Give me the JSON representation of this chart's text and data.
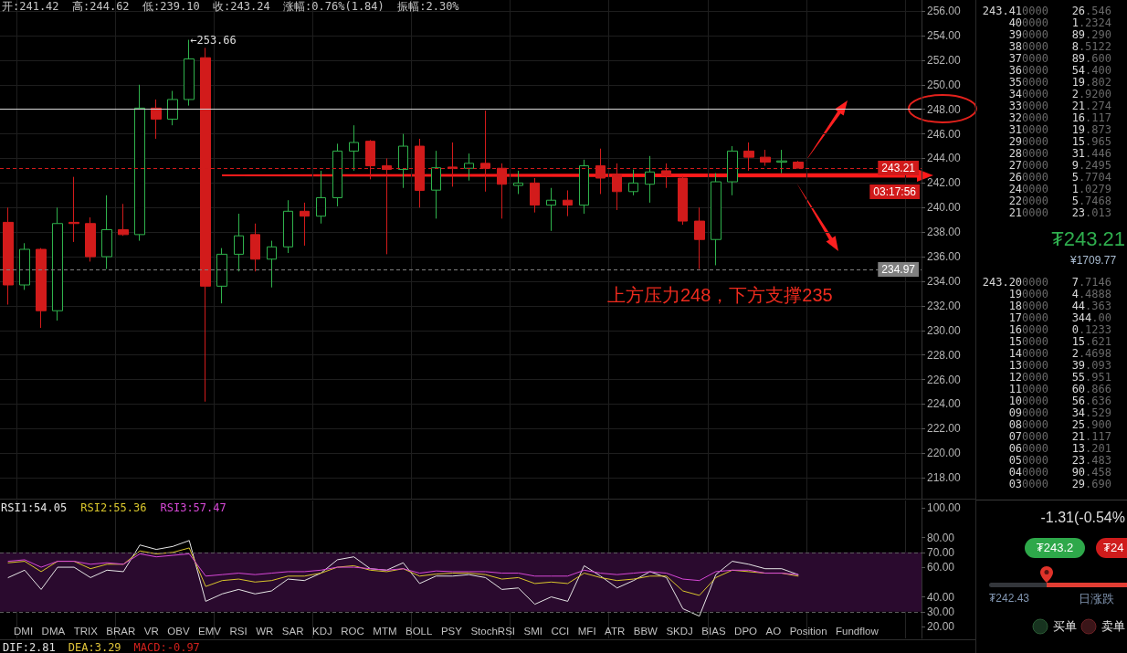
{
  "chart_data": [
    {
      "type": "candlestick",
      "title": "开:241.42  高:244.62  低:239.10  收:243.24  涨幅:0.76%(1.84)  振幅:2.30%",
      "categories": [
        null,
        null,
        null,
        null,
        null,
        null,
        null,
        null,
        null,
        null,
        null,
        null,
        null,
        null,
        null,
        null,
        null,
        null,
        null,
        null,
        null,
        null,
        null,
        null,
        null,
        null,
        null,
        null,
        null,
        null,
        null,
        null,
        null,
        null,
        null,
        null,
        null,
        null,
        null,
        null,
        null,
        null,
        null,
        null,
        null,
        null,
        null,
        null,
        null,
        null,
        null,
        null,
        null,
        null,
        null,
        null
      ],
      "ohlc": [
        [
          238.8,
          240.0,
          232.1,
          233.7
        ],
        [
          233.7,
          237.1,
          233.3,
          236.6
        ],
        [
          236.6,
          236.7,
          230.2,
          231.6
        ],
        [
          231.6,
          240.0,
          230.8,
          238.7
        ],
        [
          238.8,
          242.5,
          237.2,
          238.7
        ],
        [
          238.7,
          239.2,
          235.6,
          236.0
        ],
        [
          236.0,
          241.0,
          235.0,
          238.2
        ],
        [
          238.2,
          240.3,
          237.7,
          237.8
        ],
        [
          237.8,
          250.0,
          237.3,
          248.1
        ],
        [
          248.1,
          248.8,
          245.6,
          247.2
        ],
        [
          247.2,
          249.5,
          246.7,
          248.8
        ],
        [
          248.8,
          253.66,
          248.3,
          252.1
        ],
        [
          252.2,
          253.0,
          224.2,
          233.6
        ],
        [
          233.6,
          236.7,
          232.2,
          236.2
        ],
        [
          236.2,
          239.5,
          234.8,
          237.7
        ],
        [
          237.8,
          238.7,
          234.8,
          235.8
        ],
        [
          235.8,
          237.3,
          233.5,
          236.8
        ],
        [
          236.8,
          240.6,
          236.3,
          239.7
        ],
        [
          239.7,
          240.4,
          236.9,
          239.3
        ],
        [
          239.3,
          243.0,
          238.7,
          240.8
        ],
        [
          240.8,
          245.2,
          240.1,
          244.6
        ],
        [
          244.6,
          246.7,
          243.0,
          245.3
        ],
        [
          245.4,
          245.5,
          242.3,
          243.4
        ],
        [
          243.4,
          244.0,
          236.2,
          243.1
        ],
        [
          243.1,
          246.0,
          241.6,
          245.0
        ],
        [
          245.0,
          245.6,
          240.0,
          241.4
        ],
        [
          241.42,
          244.62,
          239.1,
          243.24
        ],
        [
          243.3,
          245.3,
          241.7,
          243.2
        ],
        [
          243.2,
          244.4,
          242.2,
          243.6
        ],
        [
          243.6,
          247.9,
          241.3,
          243.2
        ],
        [
          243.2,
          243.6,
          239.1,
          241.9
        ],
        [
          241.8,
          243.0,
          241.1,
          242.0
        ],
        [
          242.0,
          242.4,
          239.6,
          240.2
        ],
        [
          240.2,
          241.6,
          238.1,
          240.6
        ],
        [
          240.6,
          241.4,
          239.3,
          240.2
        ],
        [
          240.2,
          243.9,
          239.5,
          243.4
        ],
        [
          243.4,
          244.8,
          241.1,
          242.4
        ],
        [
          242.7,
          243.6,
          239.8,
          241.3
        ],
        [
          241.3,
          243.1,
          241.0,
          242.0
        ],
        [
          241.9,
          244.2,
          240.4,
          242.9
        ],
        [
          243.0,
          243.6,
          241.6,
          242.6
        ],
        [
          242.4,
          242.6,
          238.6,
          238.9
        ],
        [
          238.9,
          240.0,
          235.0,
          237.4
        ],
        [
          237.4,
          242.8,
          235.3,
          242.1
        ],
        [
          242.1,
          245.0,
          241.0,
          244.6
        ],
        [
          244.6,
          245.3,
          243.0,
          244.1
        ],
        [
          244.1,
          244.7,
          243.4,
          243.7
        ],
        [
          243.7,
          244.7,
          242.8,
          243.8
        ],
        [
          243.7,
          243.8,
          243.2,
          243.21
        ],
        null,
        null,
        null,
        null,
        null,
        null,
        null
      ],
      "colors": [
        "#d21b1b",
        "#2fb24c",
        "#d21b1b",
        "#2fb24c",
        "#d21b1b",
        "#d21b1b",
        "#2fb24c",
        "#d21b1b",
        "#2fb24c",
        "#d21b1b",
        "#2fb24c",
        "#2fb24c",
        "#d21b1b",
        "#2fb24c",
        "#2fb24c",
        "#d21b1b",
        "#2fb24c",
        "#2fb24c",
        "#d21b1b",
        "#2fb24c",
        "#2fb24c",
        "#2fb24c",
        "#d21b1b",
        "#d21b1b",
        "#2fb24c",
        "#d21b1b",
        "#2fb24c",
        "#d21b1b",
        "#2fb24c",
        "#d21b1b",
        "#d21b1b",
        "#2fb24c",
        "#d21b1b",
        "#2fb24c",
        "#d21b1b",
        "#2fb24c",
        "#d21b1b",
        "#d21b1b",
        "#2fb24c",
        "#2fb24c",
        "#d21b1b",
        "#d21b1b",
        "#d21b1b",
        "#2fb24c",
        "#2fb24c",
        "#d21b1b",
        "#d21b1b",
        "#2fb24c",
        "#d21b1b",
        null,
        null,
        null,
        null,
        null,
        null,
        null
      ],
      "ylim": [
        216.3,
        256.9
      ],
      "yticks": [
        {
          "value": 218,
          "label": "218.00"
        },
        {
          "value": 220,
          "label": "220.00"
        },
        {
          "value": 222,
          "label": "222.00"
        },
        {
          "value": 224,
          "label": "224.00"
        },
        {
          "value": 226,
          "label": "226.00"
        },
        {
          "value": 228,
          "label": "228.00"
        },
        {
          "value": 230,
          "label": "230.00"
        },
        {
          "value": 232,
          "label": "232.00"
        },
        {
          "value": 234,
          "label": "234.00"
        },
        {
          "value": 236,
          "label": "236.00"
        },
        {
          "value": 238,
          "label": "238.00"
        },
        {
          "value": 240,
          "label": "240.00"
        },
        {
          "value": 242,
          "label": "242.00"
        },
        {
          "value": 244,
          "label": "244.00"
        },
        {
          "value": 246,
          "label": "246.00"
        },
        {
          "value": 248,
          "label": "248.00"
        },
        {
          "value": 250,
          "label": "250.00"
        },
        {
          "value": 252,
          "label": "252.00"
        },
        {
          "value": 254,
          "label": "254.00"
        },
        {
          "value": 256,
          "label": "256.00"
        }
      ],
      "grid": true,
      "tick_labels": "y",
      "ref_lines": [
        {
          "axis": "y",
          "value": 248,
          "color": "#d8d8d8",
          "line_style": "solid"
        },
        {
          "axis": "y",
          "value": 243.21,
          "label": "243.21",
          "color": "#d01a1a",
          "line_style": "dashed"
        },
        {
          "axis": "y",
          "value": 234.97,
          "label": "234.97",
          "color": "#808080",
          "line_style": "dashed"
        }
      ],
      "annotations": [
        "←253.66",
        "上方压力248，下方支撑235",
        "03:17:56"
      ]
    },
    {
      "type": "line",
      "categories": [
        null,
        null,
        null,
        null,
        null,
        null,
        null,
        null,
        null,
        null,
        null,
        null,
        null,
        null,
        null,
        null,
        null,
        null,
        null,
        null,
        null,
        null,
        null,
        null,
        null,
        null,
        null,
        null,
        null,
        null,
        null,
        null,
        null,
        null,
        null,
        null,
        null,
        null,
        null,
        null,
        null,
        null,
        null,
        null,
        null,
        null,
        null,
        null,
        null,
        null,
        null,
        null,
        null,
        null,
        null,
        null
      ],
      "series": [
        {
          "name": "RSI1:54.05",
          "color": "#e6e6e6",
          "values": [
            53,
            58,
            45,
            60,
            60,
            53,
            58,
            57,
            75,
            72,
            74,
            78,
            37,
            42,
            45,
            42,
            44,
            52,
            51,
            56,
            65,
            67,
            59,
            58,
            63,
            49,
            54.05,
            54,
            55,
            53,
            45,
            46,
            35,
            40,
            37,
            61,
            54,
            46,
            51,
            57,
            53,
            32,
            27,
            55,
            64,
            62,
            59,
            59,
            55,
            null,
            null,
            null,
            null,
            null,
            null,
            null
          ]
        },
        {
          "name": "RSI2:55.36",
          "color": "#d9c62c",
          "values": [
            63,
            64,
            57,
            64,
            64,
            59,
            62,
            62,
            71,
            69,
            70,
            73,
            47,
            51,
            52,
            50,
            51,
            54,
            54,
            56,
            60,
            61,
            58,
            57,
            59,
            54,
            55.36,
            56,
            56,
            55,
            52,
            53,
            49,
            50,
            49,
            56,
            53,
            51,
            52,
            54,
            54,
            44,
            41,
            53,
            58,
            57,
            56,
            56,
            54,
            null,
            null,
            null,
            null,
            null,
            null,
            null
          ]
        },
        {
          "name": "RSI3:57.47",
          "color": "#d648d6",
          "values": [
            64,
            65,
            60,
            64,
            64,
            62,
            63,
            62,
            69,
            67,
            68,
            69,
            54,
            55,
            56,
            55,
            56,
            57,
            57,
            58,
            60,
            60,
            59,
            58,
            59,
            56,
            57.47,
            57,
            57,
            57,
            56,
            56,
            54,
            54,
            54,
            58,
            56,
            55,
            56,
            57,
            56,
            52,
            51,
            57,
            58,
            58,
            56,
            56,
            55,
            null,
            null,
            null,
            null,
            null,
            null,
            null
          ]
        }
      ],
      "ylim": [
        12,
        105
      ],
      "yticks": [
        {
          "value": 20,
          "label": "20.00"
        },
        {
          "value": 30,
          "label": "30.00"
        },
        {
          "value": 40,
          "label": "40.00"
        },
        {
          "value": 60,
          "label": "60.00"
        },
        {
          "value": 70,
          "label": "70.00"
        },
        {
          "value": 80,
          "label": "80.00"
        },
        {
          "value": 100,
          "label": "100.00"
        }
      ],
      "grid": "x",
      "tick_labels": "y",
      "legend": "top left",
      "ref_lines": [
        {
          "axis": "y",
          "value": 70,
          "color": "#5c5c5c",
          "line_style": "dashed"
        },
        {
          "axis": "y",
          "value": 30,
          "color": "#5c5c5c",
          "line_style": "dashed"
        }
      ],
      "bands": [
        {
          "axis": "y",
          "from": 30,
          "to": 70,
          "color": "#2a0a2e"
        }
      ],
      "annotations": [
        "DMI",
        "DMA",
        "TRIX",
        "BRAR",
        "VR",
        "OBV",
        "EMV",
        "RSI",
        "WR",
        "SAR",
        "KDJ",
        "ROC",
        "MTM",
        "BOLL",
        "PSY",
        "StochRSI",
        "SMI",
        "CCI",
        "MFI",
        "ATR",
        "BBW",
        "SKDJ",
        "BIAS",
        "DPO",
        "AO",
        "Position",
        "Fundflow"
      ]
    },
    {
      "type": "other",
      "annotations": [
        "DIF:2.81",
        "DEA:3.29",
        "MACD:-0.97"
      ]
    },
    {
      "type": "other",
      "annotations": [
        "243.410000",
        "26.546",
        "400000",
        "1.2324",
        "390000",
        "89.290",
        "380000",
        "8.5122",
        "370000",
        "89.600",
        "360000",
        "54.400",
        "350000",
        "19.802",
        "340000",
        "2.9200",
        "330000",
        "21.274",
        "320000",
        "16.117",
        "310000",
        "19.873",
        "290000",
        "15.965",
        "280000",
        "31.446",
        "270000",
        "9.2495",
        "260000",
        "5.7704",
        "240000",
        "1.0279",
        "220000",
        "5.7468",
        "210000",
        "23.013",
        "₮243.21",
        "¥1709.77",
        "243.200000",
        "7.7146",
        "190000",
        "4.4888",
        "180000",
        "44.363",
        "170000",
        "344.00",
        "160000",
        "0.1233",
        "150000",
        "15.621",
        "140000",
        "2.4698",
        "130000",
        "39.093",
        "120000",
        "55.951",
        "110000",
        "60.866",
        "100000",
        "56.636",
        "090000",
        "34.529",
        "080000",
        "25.900",
        "070000",
        "21.117",
        "060000",
        "13.201",
        "050000",
        "23.483",
        "040000",
        "90.458",
        "030000",
        "29.690",
        "-1.31(-0.54%",
        "₮243.2",
        "₮24",
        "₮242.43",
        "日涨跌",
        "买单",
        "卖单"
      ]
    }
  ]
}
